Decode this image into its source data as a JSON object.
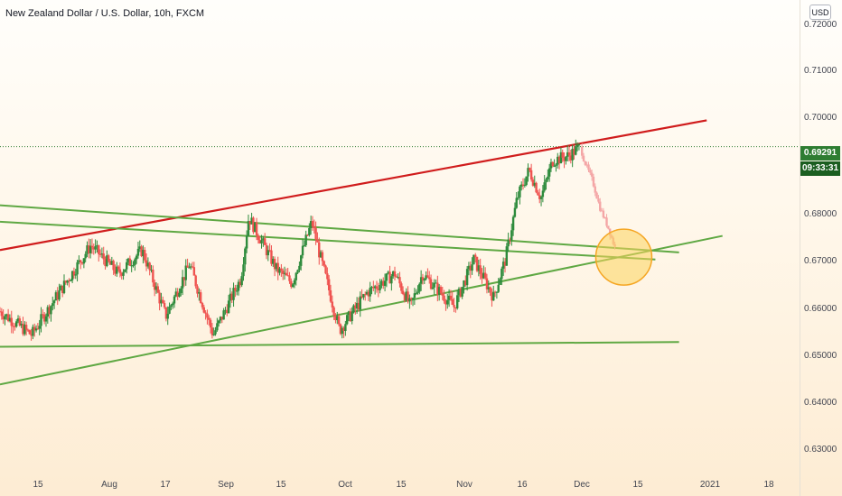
{
  "header": {
    "title": "New Zealand Dollar / U.S. Dollar, 10h, FXCM"
  },
  "price_scale": {
    "currency": "USD",
    "last_price": "0.69291",
    "countdown": "09:33:31"
  },
  "colors": {
    "up": "#2e8b3c",
    "down": "#ef5350",
    "projection": "#f4a6a6",
    "resistance_line": "#d01c1c",
    "trendlines": "#5fa843",
    "target_circle_fill": "#fcd45c",
    "target_circle_stroke": "#f5a623",
    "last_price_line": "#2e7d32"
  },
  "chart_data": {
    "type": "candlestick",
    "title": "New Zealand Dollar / U.S. Dollar, 10h, FXCM",
    "y_axis": {
      "ticks": [
        "0.72000",
        "0.71000",
        "0.70000",
        "0.69291",
        "0.68000",
        "0.67000",
        "0.66000",
        "0.65000",
        "0.64000",
        "0.63000"
      ],
      "range": [
        0.624,
        0.723
      ],
      "last_price": 0.69291
    },
    "x_axis": {
      "ticks": [
        "15",
        "Aug",
        "17",
        "Sep",
        "15",
        "Oct",
        "15",
        "Nov",
        "16",
        "Dec",
        "15",
        "2021",
        "18"
      ]
    },
    "price_path": [
      {
        "date": "Jul 01",
        "close": 0.658
      },
      {
        "date": "Jul 09",
        "close": 0.653
      },
      {
        "date": "Jul 16",
        "close": 0.662
      },
      {
        "date": "Jul 24",
        "close": 0.672
      },
      {
        "date": "Jul 31",
        "close": 0.666
      },
      {
        "date": "Aug 06",
        "close": 0.671
      },
      {
        "date": "Aug 12",
        "close": 0.657
      },
      {
        "date": "Aug 18",
        "close": 0.668
      },
      {
        "date": "Aug 24",
        "close": 0.653
      },
      {
        "date": "Aug 31",
        "close": 0.665
      },
      {
        "date": "Sep 02",
        "close": 0.678
      },
      {
        "date": "Sep 09",
        "close": 0.667
      },
      {
        "date": "Sep 13",
        "close": 0.664
      },
      {
        "date": "Sep 18",
        "close": 0.677
      },
      {
        "date": "Sep 20",
        "close": 0.67
      },
      {
        "date": "Sep 25",
        "close": 0.654
      },
      {
        "date": "Oct 02",
        "close": 0.662
      },
      {
        "date": "Oct 09",
        "close": 0.666
      },
      {
        "date": "Oct 13",
        "close": 0.659
      },
      {
        "date": "Oct 16",
        "close": 0.666
      },
      {
        "date": "Oct 24",
        "close": 0.659
      },
      {
        "date": "Oct 29",
        "close": 0.669
      },
      {
        "date": "Nov 03",
        "close": 0.661
      },
      {
        "date": "Nov 06",
        "close": 0.669
      },
      {
        "date": "Nov 09",
        "close": 0.682
      },
      {
        "date": "Nov 12",
        "close": 0.688
      },
      {
        "date": "Nov 15",
        "close": 0.682
      },
      {
        "date": "Nov 18",
        "close": 0.69
      },
      {
        "date": "Nov 22",
        "close": 0.691
      },
      {
        "date": "Nov 25",
        "close": 0.69291
      }
    ],
    "projection": [
      {
        "date": "Nov 26",
        "close": 0.69
      },
      {
        "date": "Nov 28",
        "close": 0.686
      },
      {
        "date": "Nov 30",
        "close": 0.68
      },
      {
        "date": "Dec 02",
        "close": 0.676
      },
      {
        "date": "Dec 04",
        "close": 0.671
      }
    ],
    "trendlines": [
      {
        "name": "resistance",
        "from": {
          "date": "Jul 01",
          "price": 0.671
        },
        "to": {
          "date": "Dec 27",
          "price": 0.6985
        }
      },
      {
        "name": "upper-green-1",
        "from": {
          "date": "Jul 01",
          "price": 0.6805
        },
        "to": {
          "date": "Dec 20",
          "price": 0.6705
        }
      },
      {
        "name": "upper-green-2",
        "from": {
          "date": "Jul 01",
          "price": 0.677
        },
        "to": {
          "date": "Dec 14",
          "price": 0.669
        }
      },
      {
        "name": "rising-support",
        "from": {
          "date": "Jul 01",
          "price": 0.6425
        },
        "to": {
          "date": "Dec 31",
          "price": 0.674
        }
      },
      {
        "name": "horizontal-support",
        "from": {
          "date": "Jul 01",
          "price": 0.6505
        },
        "to": {
          "date": "Dec 20",
          "price": 0.6515
        }
      }
    ],
    "target_zone": {
      "date": "Dec 06",
      "price": 0.6695
    }
  }
}
